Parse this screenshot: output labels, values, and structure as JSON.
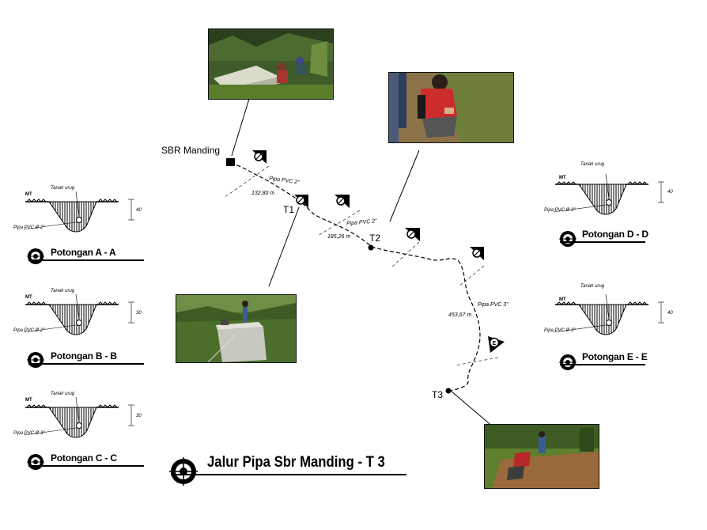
{
  "title": "Jalur Pipa Sbr Manding - T 3",
  "nodes": {
    "source": "SBR Manding",
    "t1": "T1",
    "t2": "T2",
    "t3": "T3"
  },
  "segments": {
    "s1": {
      "pipe": "Pipa PVC 2\"",
      "length": "132,80 m"
    },
    "s2": {
      "pipe": "Pipa PVC 2\"",
      "length": "185,26 m"
    },
    "s3": {
      "pipe": "Pipa PVC 3\"",
      "length": "453,67 m"
    }
  },
  "sections": [
    {
      "label": "Potongan A - A",
      "fill": "Tanah urug",
      "ground": "MT",
      "pipe": "Pipa PVC Ø 2\"",
      "depth": "40",
      "marker": "A"
    },
    {
      "label": "Potongan B - B",
      "fill": "Tanah urug",
      "ground": "MT",
      "pipe": "Pipa PVC Ø 2\"",
      "depth": "30",
      "marker": "B"
    },
    {
      "label": "Potongan C - C",
      "fill": "Tanah urug",
      "ground": "MT",
      "pipe": "Pipa PVC Ø 3\"",
      "depth": "30",
      "marker": "C"
    },
    {
      "label": "Potongan D - D",
      "fill": "Tanah urug",
      "ground": "MT",
      "pipe": "Pipa PVC Ø 3\"",
      "depth": "40",
      "marker": "D"
    },
    {
      "label": "Potongan E - E",
      "fill": "Tanah urug",
      "ground": "MT",
      "pipe": "Pipa PVC Ø 3\"",
      "depth": "40",
      "marker": "E"
    }
  ]
}
